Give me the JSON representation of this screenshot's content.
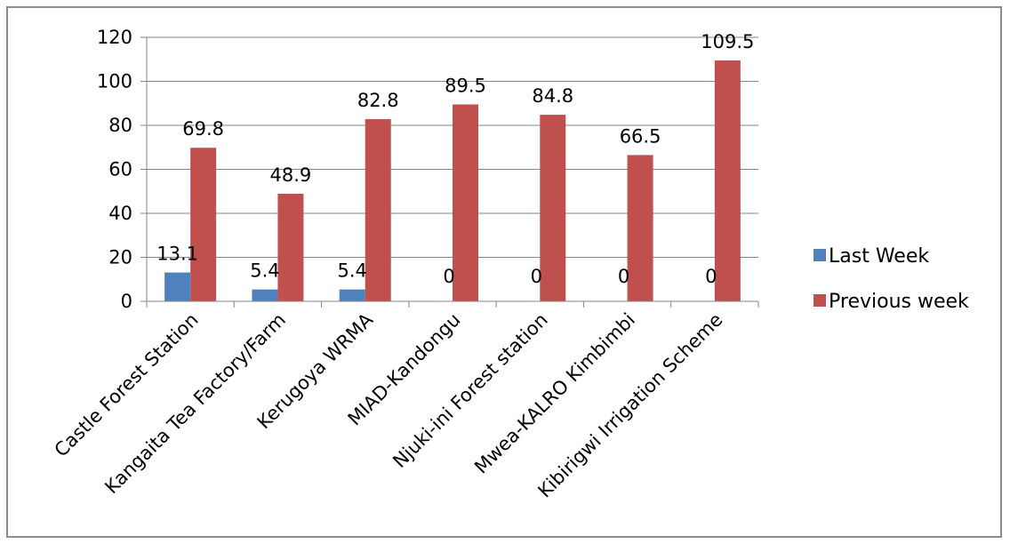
{
  "chart_data": {
    "type": "bar",
    "categories": [
      "Castle Forest Station",
      "Kangaita Tea Factory/Farm",
      "Kerugoya WRMA",
      "MIAD-Kandongu",
      "Njuki-ini Forest station",
      "Mwea-KALRO Kimbimbi",
      "Kibirigwi Irrigation Scheme"
    ],
    "series": [
      {
        "name": "Last Week",
        "color": "#4f81bd",
        "values": [
          13.1,
          5.4,
          5.4,
          0,
          0,
          0,
          0
        ],
        "labels": [
          "13.1",
          "5.4",
          "5.4",
          "0",
          "0",
          "0",
          "0"
        ]
      },
      {
        "name": "Previous week",
        "color": "#c0504d",
        "values": [
          69.8,
          48.9,
          82.8,
          89.5,
          84.8,
          66.5,
          109.5
        ],
        "labels": [
          "69.8",
          "48.9",
          "82.8",
          "89.5",
          "84.8",
          "66.5",
          "109.5"
        ]
      }
    ],
    "yticks": [
      "0",
      "20",
      "40",
      "60",
      "80",
      "100",
      "120"
    ],
    "ylim": [
      0,
      120
    ],
    "grid": true,
    "legend_position": "right"
  }
}
